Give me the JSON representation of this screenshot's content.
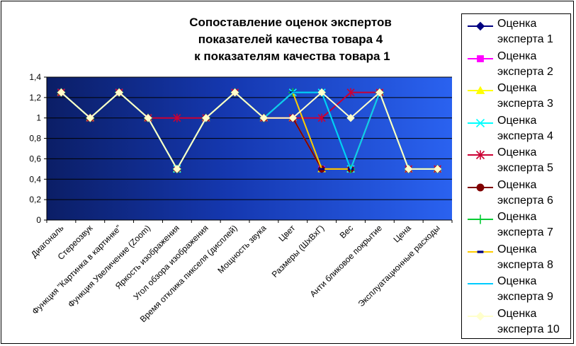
{
  "chart_data": {
    "type": "line",
    "title_lines": [
      "Сопоставление оценок экспертов",
      "показателей качества товара 4",
      " к показателям качества товара 1"
    ],
    "categories": [
      "Диагональ",
      "Стереозвук",
      "Функция \"Картинка в картинке\"",
      "Функция Увеличение (Zoom)",
      "Яркость изображения",
      "Угол обзора изображения",
      "Время отклика пикселя (дисплей)",
      "Мощность звука",
      "Цвет",
      "Размеры (ШхВхГ)",
      "Вес",
      "Анти бликовое покрытие",
      "Цена",
      "Эксплуатационные расходы"
    ],
    "yticks": [
      "0",
      "0,2",
      "0,4",
      "0,6",
      "0,8",
      "1",
      "1,2",
      "1,4"
    ],
    "ylim": [
      0,
      1.4
    ],
    "grid": true,
    "legend_position": "right",
    "series": [
      {
        "name": [
          "Оценка",
          "эксперта 1"
        ],
        "color": "#000080",
        "marker": "diamond",
        "values": [
          1.25,
          1,
          1.25,
          1,
          0.5,
          1,
          1.25,
          1,
          1,
          0.5,
          0.5,
          1.25,
          0.5,
          0.5
        ]
      },
      {
        "name": [
          "Оценка",
          "эксперта 2"
        ],
        "color": "#FF00FF",
        "marker": "square",
        "values": [
          1.25,
          1,
          1.25,
          1,
          0.5,
          1,
          1.25,
          1,
          1,
          0.5,
          0.5,
          1.25,
          0.5,
          0.5
        ]
      },
      {
        "name": [
          "Оценка",
          "эксперта 3"
        ],
        "color": "#FFFF00",
        "marker": "triangle",
        "values": [
          1.25,
          1,
          1.25,
          1,
          0.5,
          1,
          1.25,
          1,
          1,
          0.5,
          0.5,
          1.25,
          0.5,
          0.5
        ]
      },
      {
        "name": [
          "Оценка",
          "эксперта 4"
        ],
        "color": "#00FFFF",
        "marker": "x",
        "values": [
          1.25,
          1,
          1.25,
          1,
          0.5,
          1,
          1.25,
          1,
          1.25,
          1.25,
          0.5,
          1.25,
          0.5,
          0.5
        ]
      },
      {
        "name": [
          "Оценка",
          "эксперта 5"
        ],
        "color": "#CC0033",
        "marker": "star",
        "values": [
          1.25,
          1,
          1.25,
          1,
          1,
          1,
          1.25,
          1,
          1,
          1,
          1.25,
          1.25,
          0.5,
          0.5
        ]
      },
      {
        "name": [
          "Оценка",
          "эксперта 6"
        ],
        "color": "#800000",
        "marker": "circle",
        "values": [
          1.25,
          1,
          1.25,
          1,
          0.5,
          1,
          1.25,
          1,
          1,
          0.5,
          0.5,
          1.25,
          0.5,
          0.5
        ]
      },
      {
        "name": [
          "Оценка",
          "эксперта 7"
        ],
        "color": "#00CC33",
        "marker": "plus",
        "values": [
          1.25,
          1,
          1.25,
          1,
          0.5,
          1,
          1.25,
          1,
          1.25,
          1.25,
          0.5,
          1.25,
          0.5,
          0.5
        ]
      },
      {
        "name": [
          "Оценка",
          "эксперта 8"
        ],
        "color": "#FFCC00",
        "marker": "dash",
        "values": [
          1.25,
          1,
          1.25,
          1,
          0.5,
          1,
          1.25,
          1,
          1.25,
          0.5,
          0.5,
          1.25,
          0.5,
          0.5
        ]
      },
      {
        "name": [
          "Оценка",
          "эксперта 9"
        ],
        "color": "#00CCFF",
        "marker": "line",
        "values": [
          1.25,
          1,
          1.25,
          1,
          0.5,
          1,
          1.25,
          1,
          1.25,
          1.25,
          0.5,
          1.25,
          0.5,
          0.5
        ]
      },
      {
        "name": [
          "Оценка",
          "эксперта 10"
        ],
        "color": "#FFFFCC",
        "marker": "diamond",
        "values": [
          1.25,
          1,
          1.25,
          1,
          0.5,
          1,
          1.25,
          1,
          1,
          1.25,
          1,
          1.25,
          0.5,
          0.5
        ]
      }
    ]
  }
}
